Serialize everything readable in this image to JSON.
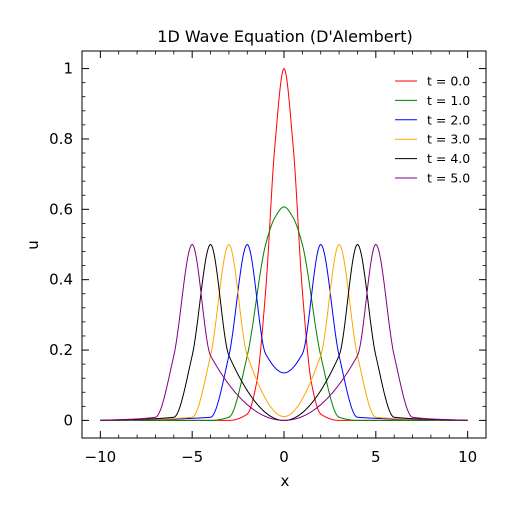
{
  "chart_data": {
    "type": "line",
    "title": "1D Wave Equation (D'Alembert)",
    "xlabel": "x",
    "ylabel": "u",
    "xlim": [
      -11,
      11
    ],
    "ylim": [
      -0.05,
      1.05
    ],
    "xticks": [
      -10,
      -5,
      0,
      5,
      10
    ],
    "xtick_labels": [
      "−10",
      "−5",
      "0",
      "5",
      "10"
    ],
    "yticks": [
      0,
      0.2,
      0.4,
      0.6,
      0.8,
      1
    ],
    "ytick_labels": [
      "0",
      "0.2",
      "0.4",
      "0.6",
      "0.8",
      "1"
    ],
    "grid": false,
    "legend_position": "top-right",
    "x_range": [
      -10,
      10
    ],
    "series": [
      {
        "name": "t = 0.0",
        "color": "#ff0000",
        "x": [
          -10,
          -4,
          -3,
          -2,
          -1.5,
          -1,
          -0.5,
          0,
          0.5,
          1,
          1.5,
          2,
          3,
          4,
          10
        ],
        "y": [
          0,
          0.0,
          0.0,
          0.018,
          0.105,
          0.368,
          0.779,
          1.0,
          0.779,
          0.368,
          0.105,
          0.018,
          0.0,
          0.0,
          0
        ]
      },
      {
        "name": "t = 1.0",
        "color": "#008000",
        "x": [
          -10,
          -4,
          -3,
          -2,
          -1,
          -0.5,
          0,
          0.5,
          1,
          2,
          3,
          4,
          10
        ],
        "y": [
          0,
          0.0,
          0.009,
          0.184,
          0.5,
          0.576,
          0.607,
          0.576,
          0.5,
          0.184,
          0.009,
          0.0,
          0
        ]
      },
      {
        "name": "t = 2.0",
        "color": "#0000ff",
        "x": [
          -10,
          -4,
          -3,
          -2,
          -1,
          0,
          1,
          2,
          3,
          4,
          10
        ],
        "y": [
          0,
          0.009,
          0.184,
          0.5,
          0.189,
          0.135,
          0.189,
          0.5,
          0.184,
          0.009,
          0
        ]
      },
      {
        "name": "t = 3.0",
        "color": "#ffa500",
        "x": [
          -10,
          -5,
          -4,
          -3,
          -2,
          0,
          2,
          3,
          4,
          5,
          10
        ],
        "y": [
          0,
          0.009,
          0.184,
          0.5,
          0.184,
          0.011,
          0.184,
          0.5,
          0.184,
          0.009,
          0
        ]
      },
      {
        "name": "t = 4.0",
        "color": "#000000",
        "x": [
          -10,
          -6,
          -5,
          -4,
          -3,
          0,
          3,
          4,
          5,
          6,
          10
        ],
        "y": [
          0,
          0.009,
          0.184,
          0.5,
          0.184,
          0.0,
          0.184,
          0.5,
          0.184,
          0.009,
          0
        ]
      },
      {
        "name": "t = 5.0",
        "color": "#800080",
        "x": [
          -10,
          -7,
          -6,
          -5,
          -4,
          0,
          4,
          5,
          6,
          7,
          10
        ],
        "y": [
          0,
          0.009,
          0.184,
          0.5,
          0.184,
          0.0,
          0.184,
          0.5,
          0.184,
          0.009,
          0
        ]
      }
    ]
  }
}
